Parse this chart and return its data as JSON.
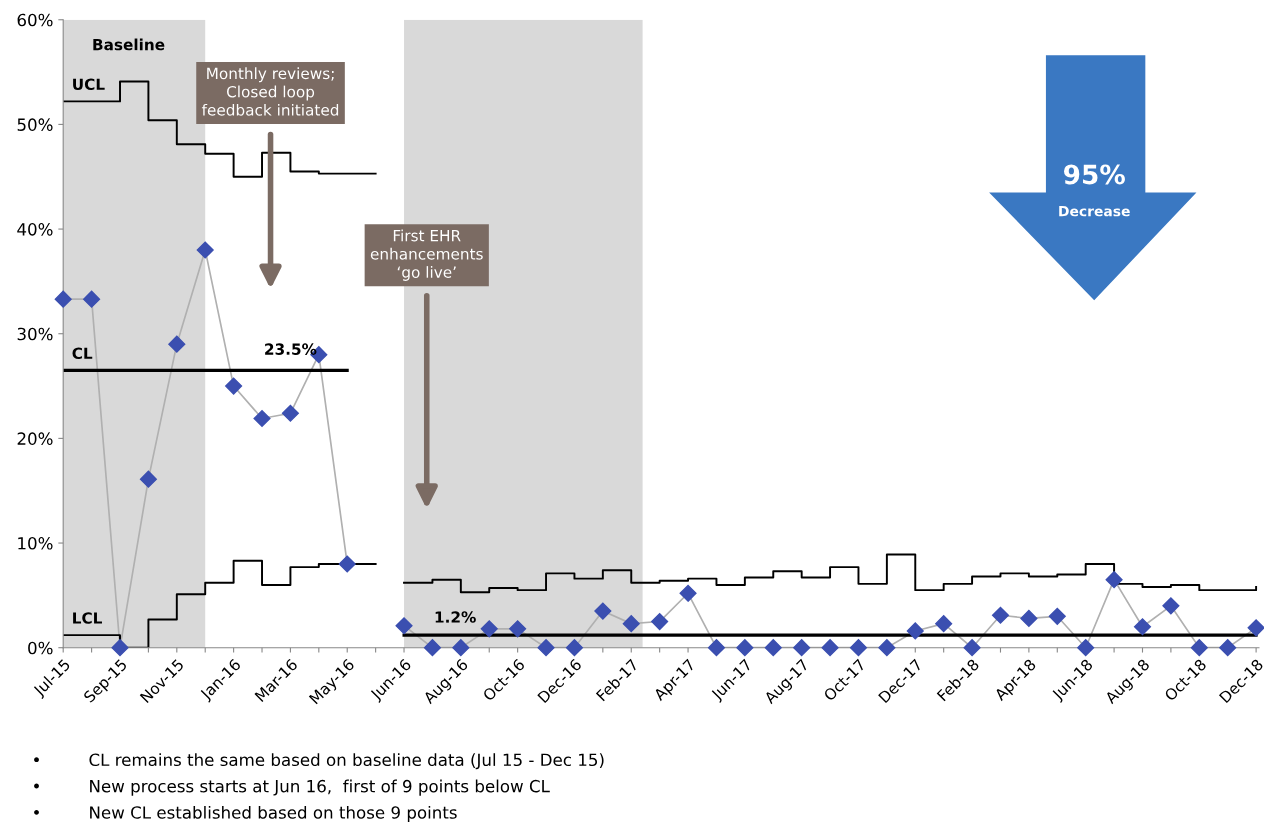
{
  "chart_data": {
    "type": "line",
    "categories": [
      "Jul-15",
      null,
      "Sep-15",
      null,
      "Nov-15",
      null,
      "Jan-16",
      null,
      "Mar-16",
      null,
      "May-16",
      null,
      "Jun-16",
      null,
      "Aug-16",
      null,
      "Oct-16",
      null,
      "Dec-16",
      null,
      "Feb-17",
      null,
      "Apr-17",
      null,
      "Jun-17",
      null,
      "Aug-17",
      null,
      "Oct-17",
      null,
      "Dec-17",
      null,
      "Feb-18",
      null,
      "Apr-18",
      null,
      "Jun-18",
      null,
      "Aug-18",
      null,
      "Oct-18",
      null,
      "Dec-18"
    ],
    "series": [
      {
        "color": "#3b4fb0",
        "marker": "diamond",
        "values": [
          33.3,
          33.3,
          0,
          16.1,
          29,
          38,
          25,
          21.9,
          22.4,
          28,
          8,
          null,
          2.1,
          0,
          0,
          1.8,
          1.8,
          0,
          0,
          3.5,
          2.3,
          2.5,
          5.2,
          0,
          0,
          0,
          0,
          0,
          0,
          0,
          1.6,
          2.3,
          0,
          3.1,
          2.8,
          3.0,
          0,
          6.5,
          2.0,
          4.0,
          0,
          0,
          1.9
        ]
      },
      {
        "type": "step",
        "name": "UCL",
        "color": "#000000",
        "values": [
          52.2,
          52.2,
          54.1,
          50.4,
          48.1,
          47.2,
          45.0,
          47.3,
          45.5,
          45.3,
          45.3,
          45.3,
          null,
          null,
          null,
          null,
          null,
          null,
          null,
          null,
          null,
          null,
          null,
          null,
          null,
          null,
          null,
          null,
          null,
          null,
          null,
          null,
          null,
          null,
          null,
          null,
          null,
          null,
          null,
          null,
          null,
          null,
          null
        ]
      },
      {
        "type": "step",
        "name": "LCL",
        "color": "#000000",
        "values": [
          1.2,
          1.2,
          0,
          2.7,
          5.1,
          6.2,
          8.3,
          6.0,
          7.7,
          8.0,
          8.0,
          8.0,
          null,
          null,
          null,
          null,
          null,
          null,
          null,
          null,
          null,
          null,
          null,
          null,
          null,
          null,
          null,
          null,
          null,
          null,
          null,
          null,
          null,
          null,
          null,
          null,
          null,
          null,
          null,
          null,
          null,
          null,
          null
        ]
      },
      {
        "name": "CL",
        "color": "#000000",
        "values": [
          26.5,
          26.5,
          26.5,
          26.5,
          26.5,
          26.5,
          26.5,
          26.5,
          26.5,
          26.5,
          26.5,
          null,
          null,
          null,
          null,
          null,
          null,
          null,
          null,
          null,
          null,
          null,
          null,
          null,
          null,
          null,
          null,
          null,
          null,
          null,
          null,
          null,
          null,
          null,
          null,
          null,
          null,
          null,
          null,
          null,
          null,
          null,
          null
        ]
      },
      {
        "type": "step",
        "color": "#000000",
        "values": [
          null,
          null,
          null,
          null,
          null,
          null,
          null,
          null,
          null,
          null,
          null,
          null,
          6.2,
          6.5,
          5.3,
          5.7,
          5.5,
          7.1,
          6.6,
          7.4,
          6.2,
          6.4,
          6.6,
          6.0,
          6.7,
          7.3,
          6.7,
          7.7,
          6.1,
          8.9,
          5.5,
          6.1,
          6.8,
          7.1,
          6.8,
          7.0,
          8.0,
          6.1,
          5.8,
          6.0,
          5.5,
          5.5,
          5.8
        ]
      },
      {
        "color": "#000000",
        "values": [
          null,
          null,
          null,
          null,
          null,
          null,
          null,
          null,
          null,
          null,
          null,
          null,
          1.2,
          1.2,
          1.2,
          1.2,
          1.2,
          1.2,
          1.2,
          1.2,
          1.2,
          1.2,
          1.2,
          1.2,
          1.2,
          1.2,
          1.2,
          1.2,
          1.2,
          1.2,
          1.2,
          1.2,
          1.2,
          1.2,
          1.2,
          1.2,
          1.2,
          1.2,
          1.2,
          1.2,
          1.2,
          1.2,
          1.2
        ]
      }
    ],
    "ylim": [
      0,
      60
    ],
    "yticks": [
      {
        "value": 0,
        "label": "0%"
      },
      {
        "value": 10,
        "label": "10%"
      },
      {
        "value": 20,
        "label": "20%"
      },
      {
        "value": 30,
        "label": "30%"
      },
      {
        "value": 40,
        "label": "40%"
      },
      {
        "value": 50,
        "label": "50%"
      },
      {
        "value": 60,
        "label": "60%"
      }
    ],
    "grid": false,
    "annotations": [
      "Baseline",
      "23.5%",
      "1.2%",
      "Monthly reviews;\nClosed loop\nfeedback initiated",
      "First EHR\nenhancements\n‘go live’",
      "95%",
      "Decrease",
      "•",
      "CL remains the same based on baseline data (Jul 15 - Dec 15)",
      "•",
      "New process starts at Jun 16,  first of 9 points below CL",
      "•",
      "New CL established based on those 9 points"
    ]
  }
}
